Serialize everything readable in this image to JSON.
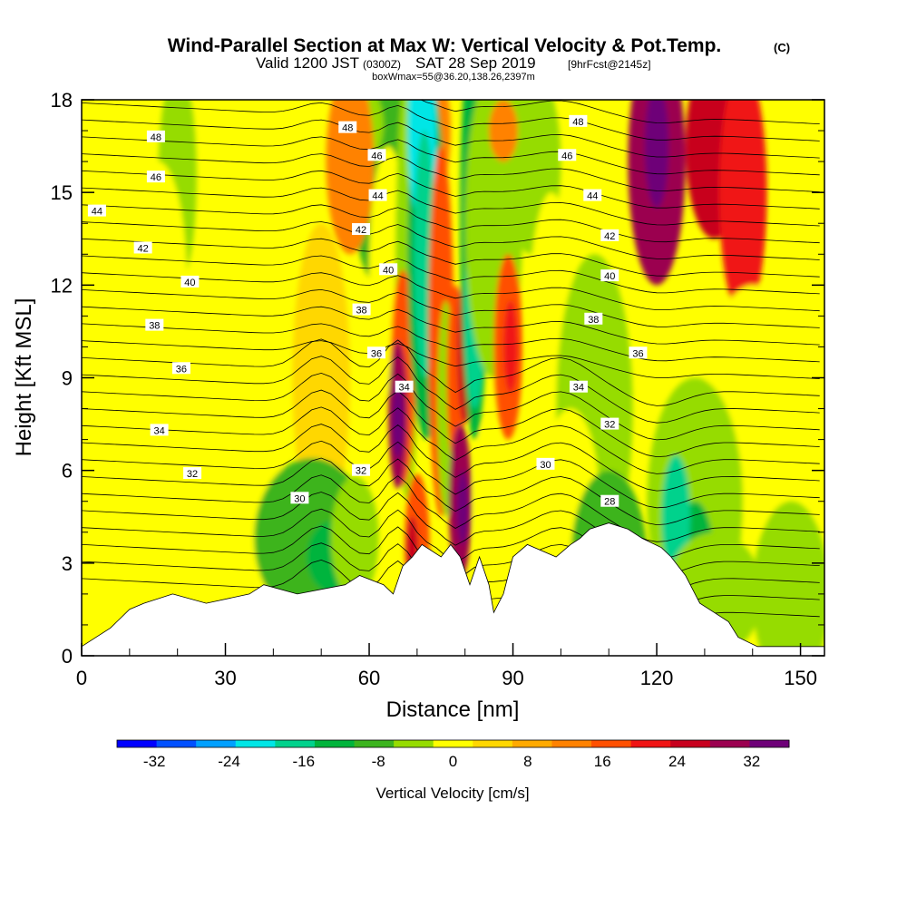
{
  "title": {
    "main": "Wind-Parallel Section at Max W: Vertical Velocity & Pot.Temp.",
    "copyright": "(C)",
    "valid_prefix": "Valid 1200 JST",
    "valid_utc": "(0300Z)",
    "valid_date": "SAT 28 Sep 2019",
    "forecast": "[9hrFcst@2145z]",
    "box": "boxWmax=55@36.20,138.26,2397m"
  },
  "chart_data": {
    "type": "heatmap",
    "xlabel": "Distance [nm]",
    "ylabel": "Height [Kft MSL]",
    "xlim": [
      0,
      155
    ],
    "ylim": [
      0,
      18
    ],
    "x_ticks": [
      0,
      30,
      60,
      90,
      120,
      150
    ],
    "y_ticks": [
      0,
      3,
      6,
      9,
      12,
      15,
      18
    ],
    "colorbar": {
      "label": "Vertical Velocity [cm/s]",
      "range": [
        -36,
        36
      ],
      "step": 4,
      "tick_values": [
        -32,
        -24,
        -16,
        -8,
        0,
        8,
        16,
        24,
        32
      ],
      "colors": [
        "#0000ff",
        "#0050ff",
        "#00a0ff",
        "#00e6e6",
        "#00d28c",
        "#00b43c",
        "#3cb41e",
        "#96dc00",
        "#ffff00",
        "#ffd700",
        "#ffaa00",
        "#ff8200",
        "#ff5000",
        "#f01414",
        "#c8001e",
        "#9b0050",
        "#6e0078"
      ]
    },
    "contour": {
      "name": "Pot.Temp.",
      "labeled_levels": [
        {
          "value": "48",
          "x": 15.5,
          "y": 16.8
        },
        {
          "value": "46",
          "x": 15.5,
          "y": 15.5
        },
        {
          "value": "44",
          "x": 3.2,
          "y": 14.4
        },
        {
          "value": "42",
          "x": 12.8,
          "y": 13.2
        },
        {
          "value": "40",
          "x": 22.6,
          "y": 12.1
        },
        {
          "value": "38",
          "x": 15.2,
          "y": 10.7
        },
        {
          "value": "36",
          "x": 20.8,
          "y": 9.3
        },
        {
          "value": "34",
          "x": 16.2,
          "y": 7.3
        },
        {
          "value": "32",
          "x": 23.1,
          "y": 5.9
        },
        {
          "value": "30",
          "x": 45.5,
          "y": 5.1
        },
        {
          "value": "48",
          "x": 55.5,
          "y": 17.1
        },
        {
          "value": "46",
          "x": 61.6,
          "y": 16.2
        },
        {
          "value": "44",
          "x": 61.8,
          "y": 14.9
        },
        {
          "value": "42",
          "x": 58.3,
          "y": 13.8
        },
        {
          "value": "40",
          "x": 64.0,
          "y": 12.5
        },
        {
          "value": "38",
          "x": 58.4,
          "y": 11.2
        },
        {
          "value": "36",
          "x": 61.5,
          "y": 9.8
        },
        {
          "value": "34",
          "x": 67.3,
          "y": 8.7
        },
        {
          "value": "32",
          "x": 58.3,
          "y": 6.0
        },
        {
          "value": "30",
          "x": 96.8,
          "y": 6.2
        },
        {
          "value": "48",
          "x": 103.6,
          "y": 17.3
        },
        {
          "value": "46",
          "x": 101.3,
          "y": 16.2
        },
        {
          "value": "44",
          "x": 106.6,
          "y": 14.9
        },
        {
          "value": "42",
          "x": 110.2,
          "y": 13.6
        },
        {
          "value": "40",
          "x": 110.2,
          "y": 12.3
        },
        {
          "value": "38",
          "x": 106.8,
          "y": 10.9
        },
        {
          "value": "36",
          "x": 116.1,
          "y": 9.8
        },
        {
          "value": "34",
          "x": 103.7,
          "y": 8.7
        },
        {
          "value": "32",
          "x": 110.2,
          "y": 7.5
        },
        {
          "value": "28",
          "x": 110.2,
          "y": 5.0
        }
      ]
    },
    "terrain_profile": [
      [
        0,
        0.3
      ],
      [
        3,
        0.6
      ],
      [
        6,
        0.9
      ],
      [
        8,
        1.2
      ],
      [
        10,
        1.5
      ],
      [
        13,
        1.7
      ],
      [
        19,
        2.0
      ],
      [
        26,
        1.7
      ],
      [
        35,
        2.0
      ],
      [
        38,
        2.3
      ],
      [
        45,
        2.0
      ],
      [
        55,
        2.3
      ],
      [
        58,
        2.6
      ],
      [
        63,
        2.3
      ],
      [
        65,
        2.0
      ],
      [
        67,
        2.9
      ],
      [
        69,
        3.2
      ],
      [
        71,
        3.6
      ],
      [
        75,
        3.2
      ],
      [
        77,
        3.6
      ],
      [
        79,
        3.2
      ],
      [
        81,
        2.3
      ],
      [
        83,
        3.2
      ],
      [
        85,
        2.3
      ],
      [
        86,
        1.4
      ],
      [
        88,
        2.0
      ],
      [
        90,
        3.2
      ],
      [
        93,
        3.6
      ],
      [
        99,
        3.2
      ],
      [
        102,
        3.6
      ],
      [
        104,
        3.8
      ],
      [
        106,
        4.1
      ],
      [
        110,
        4.3
      ],
      [
        114,
        4.1
      ],
      [
        117,
        3.8
      ],
      [
        121,
        3.5
      ],
      [
        123,
        3.2
      ],
      [
        126,
        2.6
      ],
      [
        129,
        1.7
      ],
      [
        132,
        1.4
      ],
      [
        135,
        1.1
      ],
      [
        137,
        0.6
      ],
      [
        141,
        0.3
      ],
      [
        144,
        0.3
      ],
      [
        147,
        0.3
      ],
      [
        150,
        0.3
      ],
      [
        155,
        0.3
      ]
    ],
    "grid": false
  }
}
